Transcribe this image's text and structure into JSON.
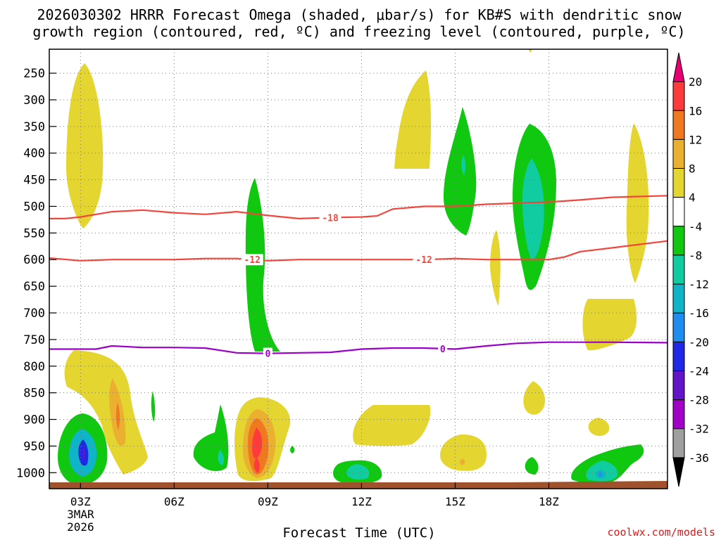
{
  "chart_data": {
    "type": "contour-shaded",
    "title_line1": "2026030302 HRRR Forecast Omega (shaded, μbar/s) for KB#S with dendritic snow",
    "title_line2": "growth region (contoured, red, ºC) and freezing level (contoured, purple, ºC)",
    "xlabel": "Forecast Time (UTC)",
    "ylabel": "",
    "credit": "coolwx.com/models",
    "x_range_hours": [
      1,
      20.8
    ],
    "y_axis": {
      "reverse": true,
      "scale": "pressure",
      "ticks": [
        "250",
        "300",
        "350",
        "400",
        "450",
        "500",
        "550",
        "600",
        "650",
        "700",
        "750",
        "800",
        "850",
        "900",
        "950",
        "1000"
      ],
      "ylim_hpa": [
        205,
        1030
      ]
    },
    "x_ticks": [
      {
        "hour": 2,
        "label": "03Z",
        "sublabel1": "3MAR",
        "sublabel2": "2026"
      },
      {
        "hour": 5,
        "label": "06Z"
      },
      {
        "hour": 8,
        "label": "09Z"
      },
      {
        "hour": 11,
        "label": "12Z"
      },
      {
        "hour": 14,
        "label": "15Z"
      },
      {
        "hour": 17,
        "label": "18Z"
      }
    ],
    "colorbar": {
      "labels": [
        "20",
        "16",
        "12",
        "8",
        "4",
        "-4",
        "-8",
        "-12",
        "-16",
        "-20",
        "-24",
        "-28",
        "-32",
        "-36"
      ],
      "colors": [
        "#E60073",
        "#FF3A3A",
        "#F07820",
        "#EBB030",
        "#E5D530",
        "#FFFFFF",
        "#10C810",
        "#10CCA0",
        "#10B4C8",
        "#1E8CF0",
        "#1E28E6",
        "#6414C8",
        "#A000C8",
        "#A0A0A0",
        "#000000"
      ]
    },
    "contours": [
      {
        "name": "-18 C",
        "color": "#F0463C",
        "label": "-18",
        "points": [
          [
            1,
            523
          ],
          [
            1.5,
            523
          ],
          [
            2,
            520
          ],
          [
            3,
            510
          ],
          [
            4,
            507
          ],
          [
            5,
            512
          ],
          [
            6,
            515
          ],
          [
            7,
            510
          ],
          [
            8,
            517
          ],
          [
            9,
            523
          ],
          [
            10,
            521
          ],
          [
            11,
            520
          ],
          [
            11.5,
            518
          ],
          [
            12,
            505
          ],
          [
            13,
            500
          ],
          [
            14,
            500
          ],
          [
            15,
            496
          ],
          [
            16,
            494
          ],
          [
            17,
            492
          ],
          [
            18,
            488
          ],
          [
            19,
            483
          ],
          [
            20.8,
            480
          ]
        ],
        "label_hours": [
          10
        ]
      },
      {
        "name": "-12 C",
        "color": "#F0463C",
        "label": "-12",
        "points": [
          [
            1,
            597
          ],
          [
            2,
            602
          ],
          [
            3,
            600
          ],
          [
            4,
            600
          ],
          [
            5,
            600
          ],
          [
            6,
            598
          ],
          [
            7,
            598
          ],
          [
            8,
            602
          ],
          [
            9,
            600
          ],
          [
            10,
            600
          ],
          [
            11,
            600
          ],
          [
            12,
            600
          ],
          [
            13,
            600
          ],
          [
            14,
            598
          ],
          [
            15,
            600
          ],
          [
            16,
            600
          ],
          [
            17,
            600
          ],
          [
            17.5,
            595
          ],
          [
            18,
            585
          ],
          [
            19,
            578
          ],
          [
            20.8,
            565
          ]
        ],
        "label_hours": [
          7.5,
          13
        ]
      },
      {
        "name": "0 C",
        "color": "#9B00C8",
        "label": "0",
        "points": [
          [
            1,
            768
          ],
          [
            2,
            768
          ],
          [
            2.5,
            768
          ],
          [
            3,
            762
          ],
          [
            4,
            765
          ],
          [
            5,
            765
          ],
          [
            6,
            766
          ],
          [
            7,
            775
          ],
          [
            8,
            776
          ],
          [
            9,
            775
          ],
          [
            10,
            774
          ],
          [
            11,
            768
          ],
          [
            12,
            766
          ],
          [
            13,
            766
          ],
          [
            14,
            768
          ],
          [
            15,
            762
          ],
          [
            16,
            757
          ],
          [
            17,
            755
          ],
          [
            18,
            755
          ],
          [
            19,
            755
          ],
          [
            20.8,
            756
          ]
        ],
        "label_hours": [
          8,
          13.6
        ]
      }
    ]
  }
}
